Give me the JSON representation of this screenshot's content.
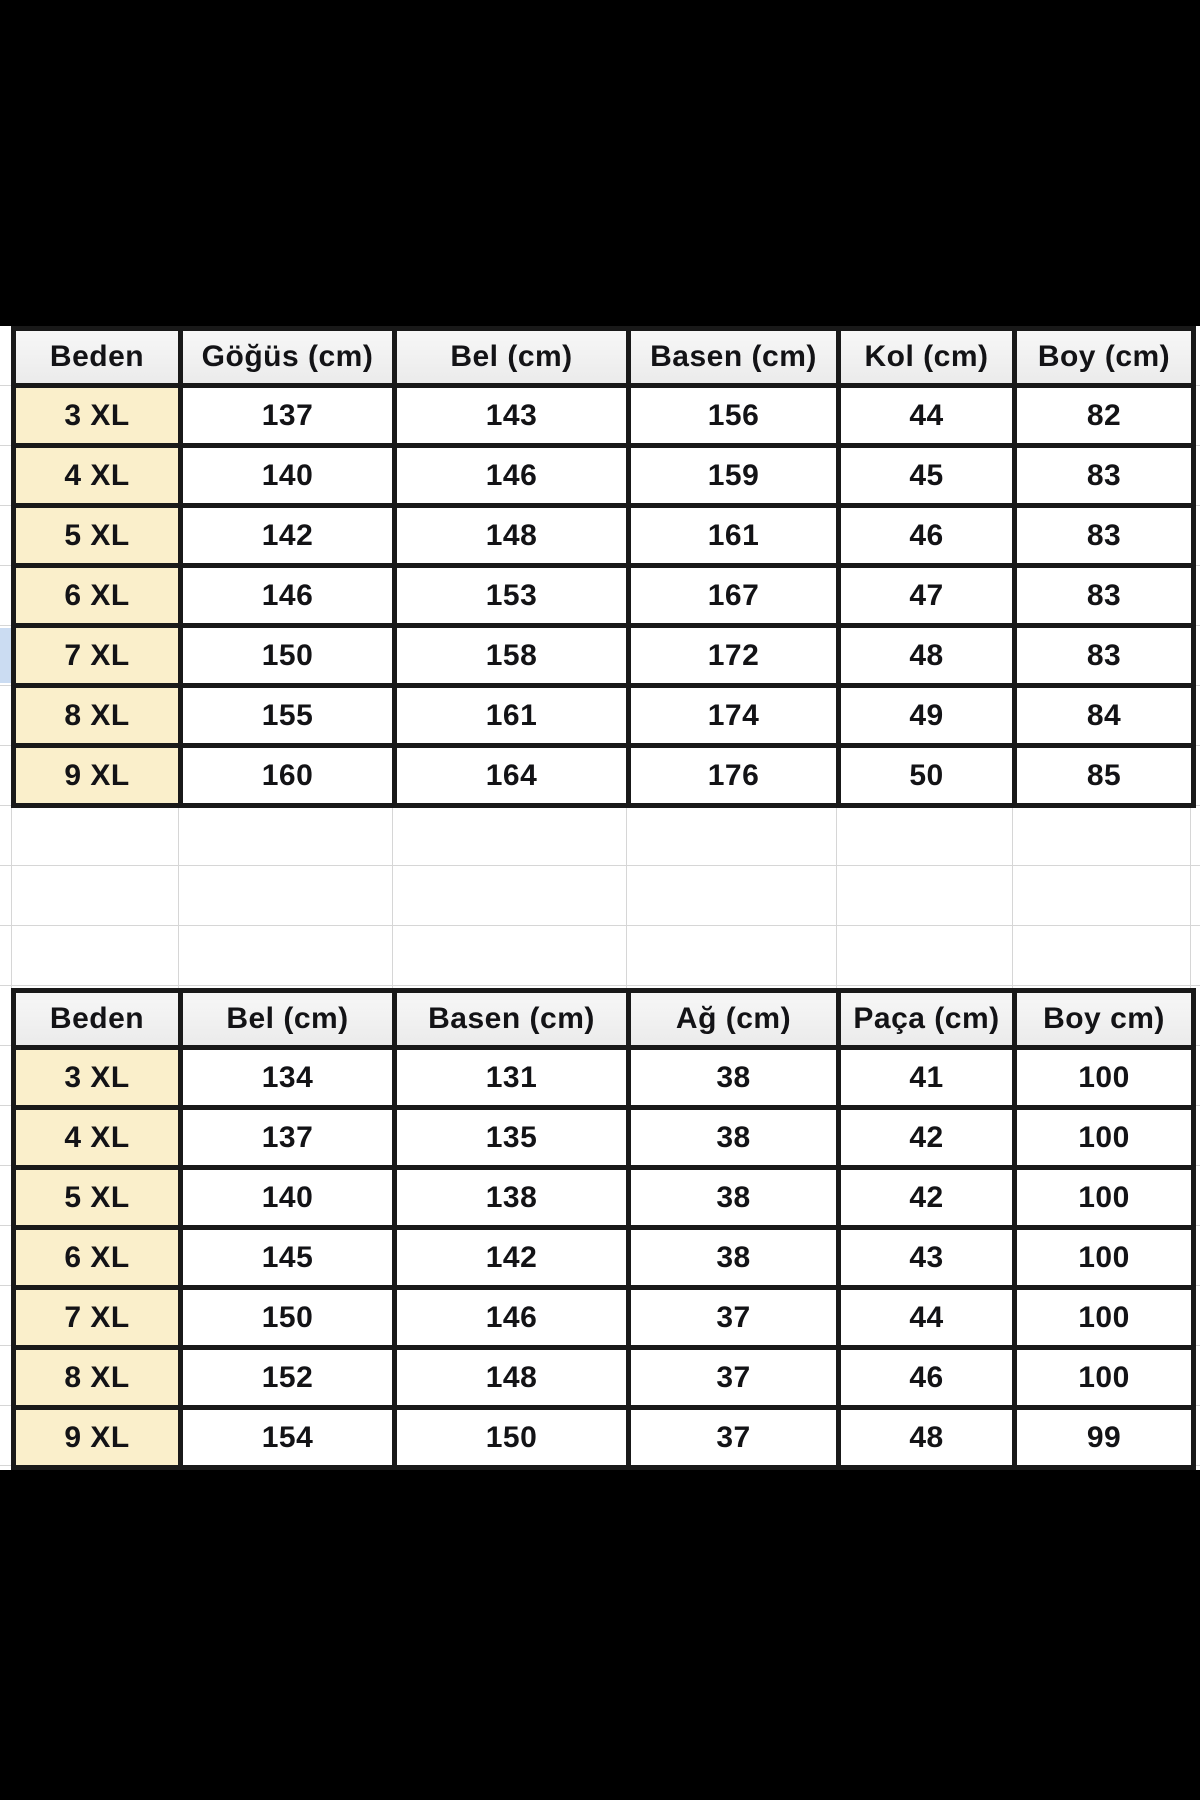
{
  "colors": {
    "canvas": "#000000",
    "sheet_background": "#ffffff",
    "gridline": "#d6d6d6",
    "table_border": "#191919",
    "header_background": "#f1f1f1",
    "size_cell_background": "#faefcb",
    "row_highlight": "#cbdcf2",
    "text": "#131316"
  },
  "tables": [
    {
      "title": "upper-size-table",
      "headers": [
        "Beden",
        "Göğüs (cm)",
        "Bel (cm)",
        "Basen (cm)",
        "Kol (cm)",
        "Boy (cm)"
      ],
      "rows": [
        {
          "size": "3 XL",
          "values": [
            "137",
            "143",
            "156",
            "44",
            "82"
          ]
        },
        {
          "size": "4 XL",
          "values": [
            "140",
            "146",
            "159",
            "45",
            "83"
          ]
        },
        {
          "size": "5 XL",
          "values": [
            "142",
            "148",
            "161",
            "46",
            "83"
          ]
        },
        {
          "size": "6 XL",
          "values": [
            "146",
            "153",
            "167",
            "47",
            "83"
          ]
        },
        {
          "size": "7 XL",
          "values": [
            "150",
            "158",
            "172",
            "48",
            "83"
          ]
        },
        {
          "size": "8 XL",
          "values": [
            "155",
            "161",
            "174",
            "49",
            "84"
          ]
        },
        {
          "size": "9 XL",
          "values": [
            "160",
            "164",
            "176",
            "50",
            "85"
          ]
        }
      ]
    },
    {
      "title": "lower-size-table",
      "headers": [
        "Beden",
        "Bel (cm)",
        "Basen (cm)",
        "Ağ (cm)",
        "Paça (cm)",
        "Boy cm)"
      ],
      "rows": [
        {
          "size": "3 XL",
          "values": [
            "134",
            "131",
            "38",
            "41",
            "100"
          ]
        },
        {
          "size": "4 XL",
          "values": [
            "137",
            "135",
            "38",
            "42",
            "100"
          ]
        },
        {
          "size": "5 XL",
          "values": [
            "140",
            "138",
            "38",
            "42",
            "100"
          ]
        },
        {
          "size": "6 XL",
          "values": [
            "145",
            "142",
            "38",
            "43",
            "100"
          ]
        },
        {
          "size": "7 XL",
          "values": [
            "150",
            "146",
            "37",
            "44",
            "100"
          ]
        },
        {
          "size": "8 XL",
          "values": [
            "152",
            "148",
            "37",
            "46",
            "100"
          ]
        },
        {
          "size": "9 XL",
          "values": [
            "154",
            "150",
            "37",
            "48",
            "99"
          ]
        }
      ]
    }
  ]
}
